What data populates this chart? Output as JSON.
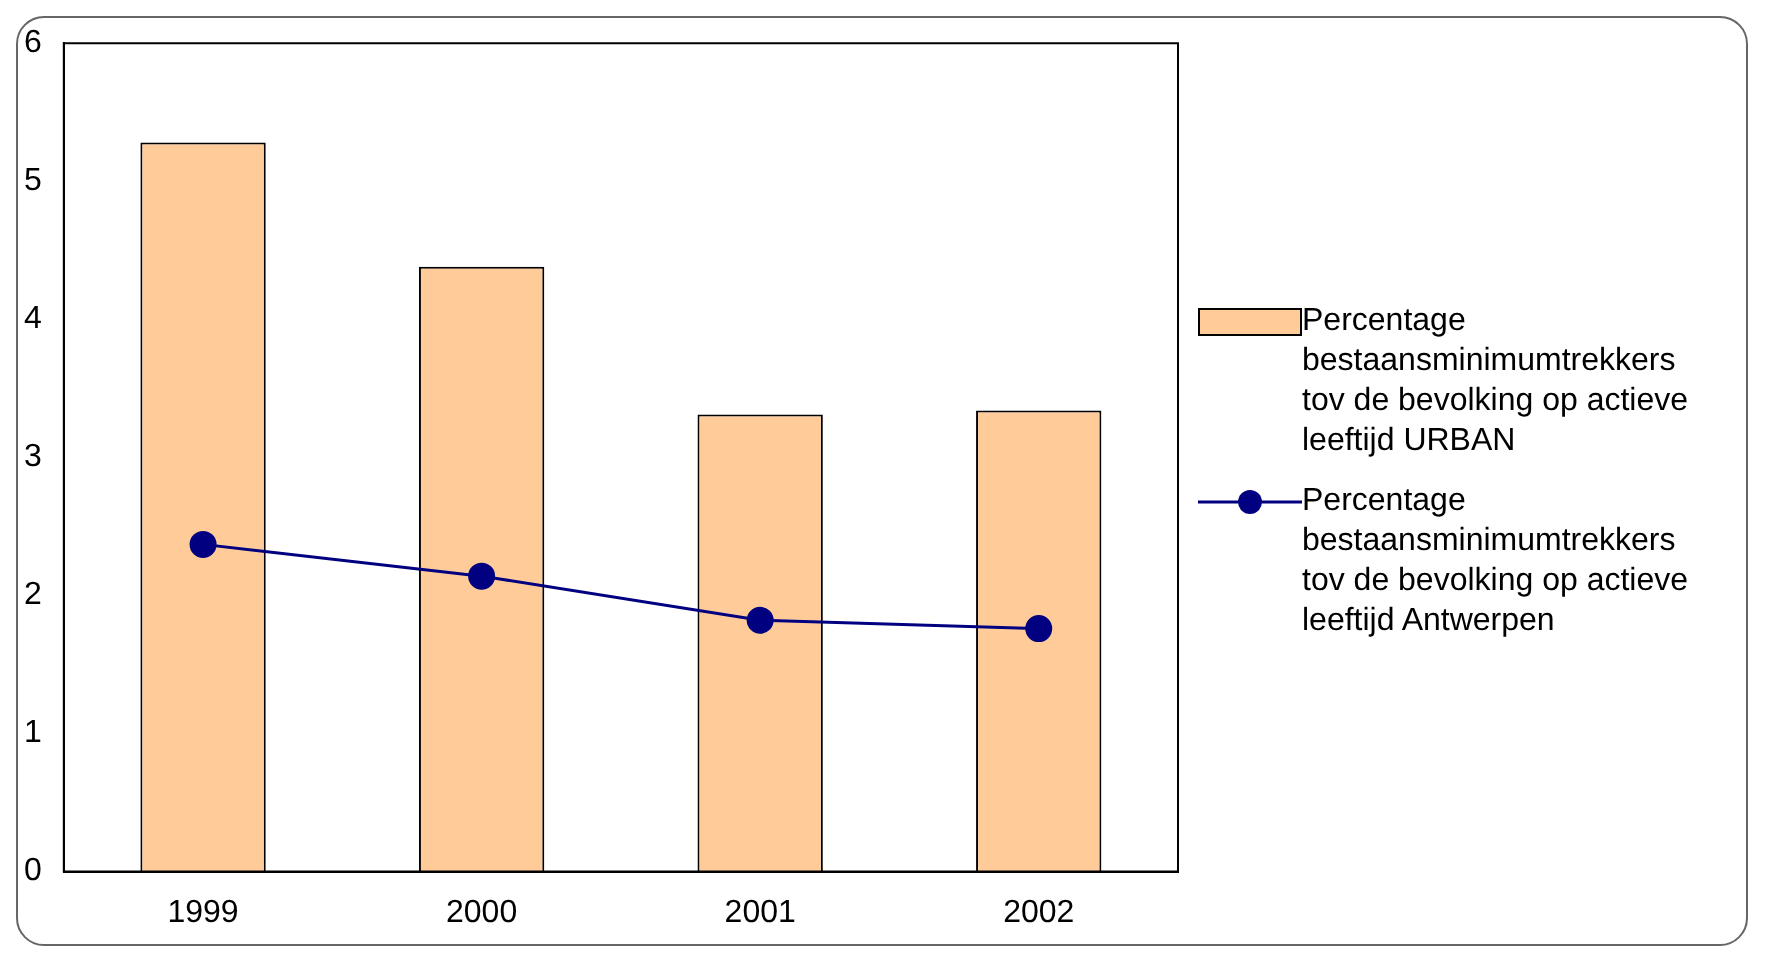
{
  "chart_data": {
    "type": "bar",
    "categories": [
      "1999",
      "2000",
      "2001",
      "2002"
    ],
    "series": [
      {
        "name": "Percentage bestaansminimumtrekkers tov de bevolking op actieve leeftijd URBAN",
        "color": "#ffcc99",
        "values": [
          5.28,
          4.38,
          3.31,
          3.34
        ]
      },
      {
        "name": "Percentage bestaansminimumtrekkers tov de bevolking op actieve leeftijd Antwerpen",
        "type": "line",
        "color": "#000080",
        "values": [
          2.37,
          2.14,
          1.82,
          1.76
        ]
      }
    ],
    "ylim": [
      0,
      6
    ],
    "yticks": [
      0,
      1,
      2,
      3,
      4,
      5,
      6
    ],
    "grid": false,
    "legend": "right",
    "marker": "circle"
  }
}
